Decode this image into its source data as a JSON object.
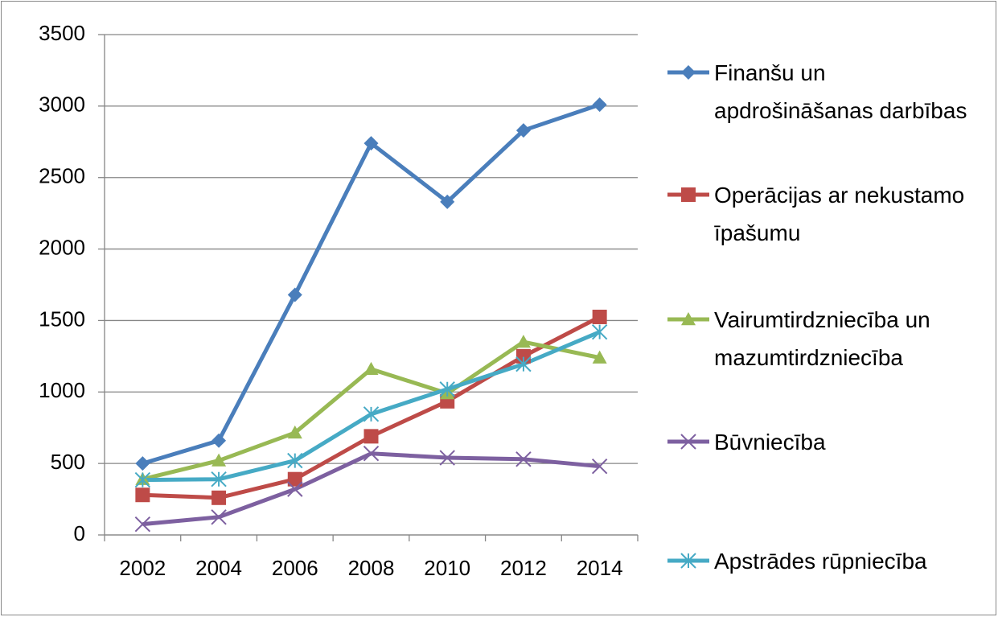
{
  "chart_data": {
    "type": "line",
    "categories": [
      "2002",
      "2004",
      "2006",
      "2008",
      "2010",
      "2012",
      "2014"
    ],
    "series": [
      {
        "name": "Finanšu un apdrošināšanas darbības",
        "color": "#4a7ebb",
        "marker": "diamond",
        "values": [
          500,
          660,
          1680,
          2740,
          2330,
          2830,
          3010
        ]
      },
      {
        "name": "Operācijas ar nekustamo īpašumu",
        "color": "#be4b48",
        "marker": "square",
        "values": [
          280,
          260,
          390,
          690,
          935,
          1250,
          1525
        ]
      },
      {
        "name": "Vairumtirdzniecība un mazumtirdzniecība",
        "color": "#98b954",
        "marker": "triangle",
        "values": [
          390,
          520,
          715,
          1160,
          990,
          1350,
          1240
        ]
      },
      {
        "name": "Būvniecība",
        "color": "#7d60a0",
        "marker": "x",
        "values": [
          75,
          125,
          320,
          570,
          540,
          530,
          480
        ]
      },
      {
        "name": "Apstrādes rūpniecība",
        "color": "#46aac5",
        "marker": "star",
        "values": [
          385,
          390,
          520,
          845,
          1020,
          1195,
          1420
        ]
      }
    ],
    "ylim": [
      0,
      3500
    ],
    "yticks": [
      0,
      500,
      1000,
      1500,
      2000,
      2500,
      3000,
      3500
    ],
    "grid": true,
    "legend": "right"
  }
}
